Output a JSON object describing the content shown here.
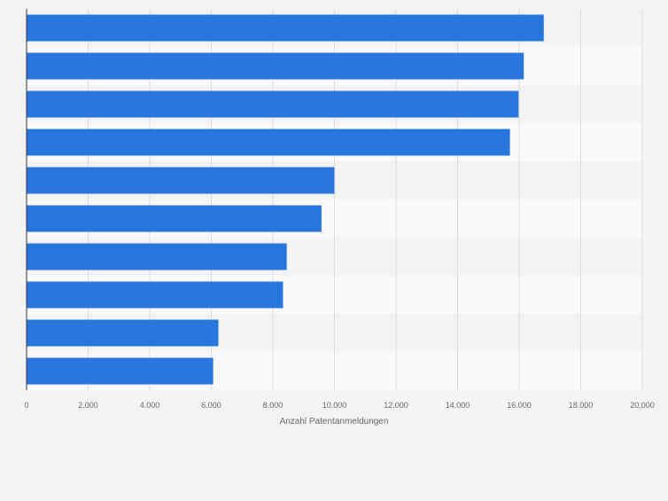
{
  "chart_data": {
    "type": "bar",
    "orientation": "horizontal",
    "categories": [
      "",
      "",
      "",
      "",
      "",
      "",
      "",
      "",
      "",
      ""
    ],
    "values": [
      16800,
      16150,
      15980,
      15700,
      10000,
      9580,
      8450,
      8330,
      6230,
      6060
    ],
    "title": "",
    "xlabel": "Anzahl Patentanmeldungen",
    "ylabel": "",
    "xlim": [
      0,
      20000
    ],
    "xticks": [
      0,
      2000,
      4000,
      6000,
      8000,
      10000,
      12000,
      14000,
      16000,
      18000,
      20000
    ],
    "xtick_labels": [
      "0",
      "2.000",
      "4.000",
      "6.000",
      "8.000",
      "10.000",
      "12.000",
      "14.000",
      "16.000",
      "18.000",
      "20.000"
    ],
    "grid": true,
    "legend": "none",
    "colors": {
      "bar": "#2876dd",
      "band_dark": "#f3f3f3",
      "band_light": "#f9f9f9",
      "grid": "#dcdcdc",
      "axis": "#333333",
      "tick_text": "#666666",
      "background": "#f4f4f4"
    }
  }
}
